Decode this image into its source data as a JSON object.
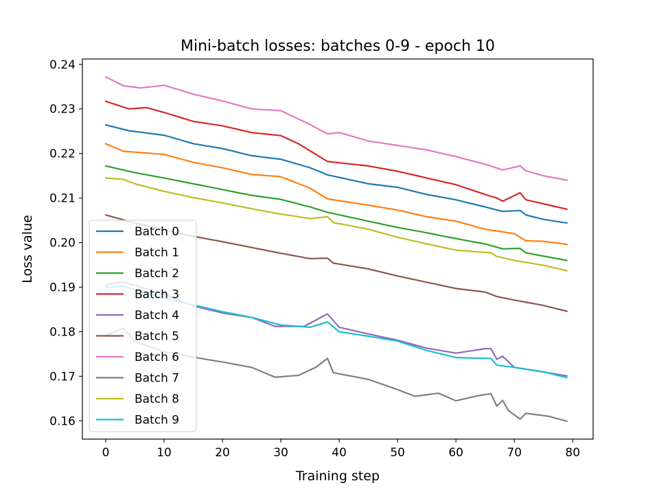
{
  "chart_data": {
    "type": "line",
    "title": "Mini-batch losses: batches 0-9 - epoch 10",
    "xlabel": "Training step",
    "ylabel": "Loss value",
    "xlim": [
      -4,
      83.5
    ],
    "ylim": [
      0.1559,
      0.2412
    ],
    "xticks": [
      0,
      10,
      20,
      30,
      40,
      50,
      60,
      70,
      80
    ],
    "yticks": [
      0.16,
      0.17,
      0.18,
      0.19,
      0.2,
      0.21,
      0.22,
      0.23,
      0.24
    ],
    "ytick_labels": [
      "0.16",
      "0.17",
      "0.18",
      "0.19",
      "0.20",
      "0.21",
      "0.22",
      "0.23",
      "0.24"
    ],
    "grid": false,
    "legend_position": "lower-left",
    "x_step": 1,
    "series": [
      {
        "name": "Batch 0",
        "color": "#1f77b4",
        "points": [
          [
            0,
            0.2264
          ],
          [
            4,
            0.2251
          ],
          [
            10,
            0.2241
          ],
          [
            15,
            0.2222
          ],
          [
            20,
            0.2211
          ],
          [
            25,
            0.2195
          ],
          [
            30,
            0.2187
          ],
          [
            35,
            0.2168
          ],
          [
            38,
            0.2152
          ],
          [
            45,
            0.2132
          ],
          [
            50,
            0.2124
          ],
          [
            55,
            0.2108
          ],
          [
            60,
            0.2096
          ],
          [
            65,
            0.208
          ],
          [
            68,
            0.207
          ],
          [
            71,
            0.2072
          ],
          [
            72,
            0.2062
          ],
          [
            75,
            0.2052
          ],
          [
            79,
            0.2044
          ]
        ]
      },
      {
        "name": "Batch 1",
        "color": "#ff7f0e",
        "points": [
          [
            0,
            0.2222
          ],
          [
            3,
            0.2205
          ],
          [
            10,
            0.2198
          ],
          [
            15,
            0.218
          ],
          [
            20,
            0.2168
          ],
          [
            25,
            0.2153
          ],
          [
            30,
            0.2148
          ],
          [
            35,
            0.2122
          ],
          [
            38,
            0.2098
          ],
          [
            45,
            0.2084
          ],
          [
            50,
            0.2073
          ],
          [
            55,
            0.2058
          ],
          [
            60,
            0.2048
          ],
          [
            65,
            0.203
          ],
          [
            70,
            0.202
          ],
          [
            72,
            0.2004
          ],
          [
            75,
            0.2003
          ],
          [
            79,
            0.1996
          ]
        ]
      },
      {
        "name": "Batch 2",
        "color": "#2ca02c",
        "points": [
          [
            0,
            0.2172
          ],
          [
            5,
            0.2157
          ],
          [
            10,
            0.2145
          ],
          [
            15,
            0.2132
          ],
          [
            20,
            0.2119
          ],
          [
            25,
            0.2106
          ],
          [
            30,
            0.2097
          ],
          [
            35,
            0.208
          ],
          [
            38,
            0.2068
          ],
          [
            45,
            0.2048
          ],
          [
            50,
            0.2034
          ],
          [
            55,
            0.2022
          ],
          [
            60,
            0.2009
          ],
          [
            65,
            0.1997
          ],
          [
            68,
            0.1986
          ],
          [
            71,
            0.1987
          ],
          [
            72,
            0.1977
          ],
          [
            79,
            0.196
          ]
        ]
      },
      {
        "name": "Batch 3",
        "color": "#d62728",
        "points": [
          [
            0,
            0.2317
          ],
          [
            4,
            0.23
          ],
          [
            7,
            0.2303
          ],
          [
            10,
            0.2292
          ],
          [
            15,
            0.2272
          ],
          [
            20,
            0.2262
          ],
          [
            25,
            0.2247
          ],
          [
            30,
            0.224
          ],
          [
            33,
            0.2222
          ],
          [
            38,
            0.2182
          ],
          [
            45,
            0.2172
          ],
          [
            50,
            0.216
          ],
          [
            55,
            0.2145
          ],
          [
            60,
            0.213
          ],
          [
            65,
            0.2108
          ],
          [
            67,
            0.21
          ],
          [
            68,
            0.2093
          ],
          [
            71,
            0.2112
          ],
          [
            72,
            0.2096
          ],
          [
            79,
            0.2075
          ]
        ]
      },
      {
        "name": "Batch 4",
        "color": "#9467bd",
        "points": [
          [
            0,
            0.1905
          ],
          [
            3,
            0.1912
          ],
          [
            10,
            0.1884
          ],
          [
            15,
            0.1858
          ],
          [
            20,
            0.1842
          ],
          [
            25,
            0.1832
          ],
          [
            29,
            0.1812
          ],
          [
            34,
            0.1812
          ],
          [
            38,
            0.184
          ],
          [
            40,
            0.181
          ],
          [
            45,
            0.1795
          ],
          [
            50,
            0.1781
          ],
          [
            55,
            0.1763
          ],
          [
            60,
            0.1752
          ],
          [
            65,
            0.1762
          ],
          [
            66,
            0.1762
          ],
          [
            67,
            0.1738
          ],
          [
            68,
            0.1745
          ],
          [
            70,
            0.172
          ],
          [
            79,
            0.1701
          ]
        ]
      },
      {
        "name": "Batch 5",
        "color": "#8c564b",
        "points": [
          [
            0,
            0.2062
          ],
          [
            5,
            0.2044
          ],
          [
            10,
            0.2028
          ],
          [
            15,
            0.2014
          ],
          [
            20,
            0.2002
          ],
          [
            25,
            0.1989
          ],
          [
            30,
            0.1976
          ],
          [
            35,
            0.1964
          ],
          [
            38,
            0.1965
          ],
          [
            39,
            0.1954
          ],
          [
            45,
            0.1941
          ],
          [
            50,
            0.1925
          ],
          [
            55,
            0.1911
          ],
          [
            60,
            0.1897
          ],
          [
            65,
            0.1889
          ],
          [
            67,
            0.1879
          ],
          [
            70,
            0.1871
          ],
          [
            75,
            0.1859
          ],
          [
            79,
            0.1846
          ]
        ]
      },
      {
        "name": "Batch 6",
        "color": "#e377c2",
        "points": [
          [
            0,
            0.2372
          ],
          [
            3,
            0.2352
          ],
          [
            6,
            0.2347
          ],
          [
            10,
            0.2353
          ],
          [
            15,
            0.2333
          ],
          [
            20,
            0.2318
          ],
          [
            25,
            0.23
          ],
          [
            30,
            0.2296
          ],
          [
            35,
            0.2265
          ],
          [
            38,
            0.2244
          ],
          [
            40,
            0.2247
          ],
          [
            45,
            0.2228
          ],
          [
            50,
            0.2218
          ],
          [
            55,
            0.2208
          ],
          [
            60,
            0.2193
          ],
          [
            65,
            0.2176
          ],
          [
            68,
            0.2163
          ],
          [
            71,
            0.2172
          ],
          [
            72,
            0.2161
          ],
          [
            75,
            0.215
          ],
          [
            79,
            0.214
          ]
        ]
      },
      {
        "name": "Batch 7",
        "color": "#7f7f7f",
        "points": [
          [
            0,
            0.1791
          ],
          [
            3,
            0.1808
          ],
          [
            5,
            0.1778
          ],
          [
            10,
            0.1755
          ],
          [
            15,
            0.1743
          ],
          [
            20,
            0.1732
          ],
          [
            25,
            0.172
          ],
          [
            29,
            0.1698
          ],
          [
            33,
            0.1702
          ],
          [
            36,
            0.172
          ],
          [
            38,
            0.174
          ],
          [
            39,
            0.1708
          ],
          [
            45,
            0.1693
          ],
          [
            50,
            0.167
          ],
          [
            53,
            0.1655
          ],
          [
            57,
            0.1662
          ],
          [
            60,
            0.1645
          ],
          [
            64,
            0.1657
          ],
          [
            66,
            0.1661
          ],
          [
            67,
            0.1633
          ],
          [
            68,
            0.1646
          ],
          [
            69,
            0.1623
          ],
          [
            71,
            0.1604
          ],
          [
            72,
            0.1617
          ],
          [
            76,
            0.161
          ],
          [
            79,
            0.1599
          ]
        ]
      },
      {
        "name": "Batch 8",
        "color": "#bcbd22",
        "points": [
          [
            0,
            0.2145
          ],
          [
            3,
            0.2142
          ],
          [
            5,
            0.2132
          ],
          [
            10,
            0.2115
          ],
          [
            15,
            0.2101
          ],
          [
            20,
            0.2089
          ],
          [
            25,
            0.2076
          ],
          [
            30,
            0.2064
          ],
          [
            35,
            0.2054
          ],
          [
            38,
            0.2058
          ],
          [
            39,
            0.2045
          ],
          [
            45,
            0.203
          ],
          [
            50,
            0.2012
          ],
          [
            55,
            0.1997
          ],
          [
            60,
            0.1983
          ],
          [
            66,
            0.1977
          ],
          [
            67,
            0.1969
          ],
          [
            70,
            0.196
          ],
          [
            75,
            0.1949
          ],
          [
            79,
            0.1937
          ]
        ]
      },
      {
        "name": "Batch 9",
        "color": "#17becf",
        "points": [
          [
            0,
            0.19
          ],
          [
            3,
            0.1902
          ],
          [
            10,
            0.1875
          ],
          [
            15,
            0.186
          ],
          [
            20,
            0.1845
          ],
          [
            25,
            0.1832
          ],
          [
            30,
            0.1815
          ],
          [
            35,
            0.181
          ],
          [
            38,
            0.1822
          ],
          [
            40,
            0.18
          ],
          [
            45,
            0.179
          ],
          [
            50,
            0.1779
          ],
          [
            55,
            0.1758
          ],
          [
            60,
            0.1742
          ],
          [
            66,
            0.174
          ],
          [
            67,
            0.1725
          ],
          [
            70,
            0.172
          ],
          [
            75,
            0.171
          ],
          [
            79,
            0.1697
          ]
        ]
      }
    ]
  }
}
